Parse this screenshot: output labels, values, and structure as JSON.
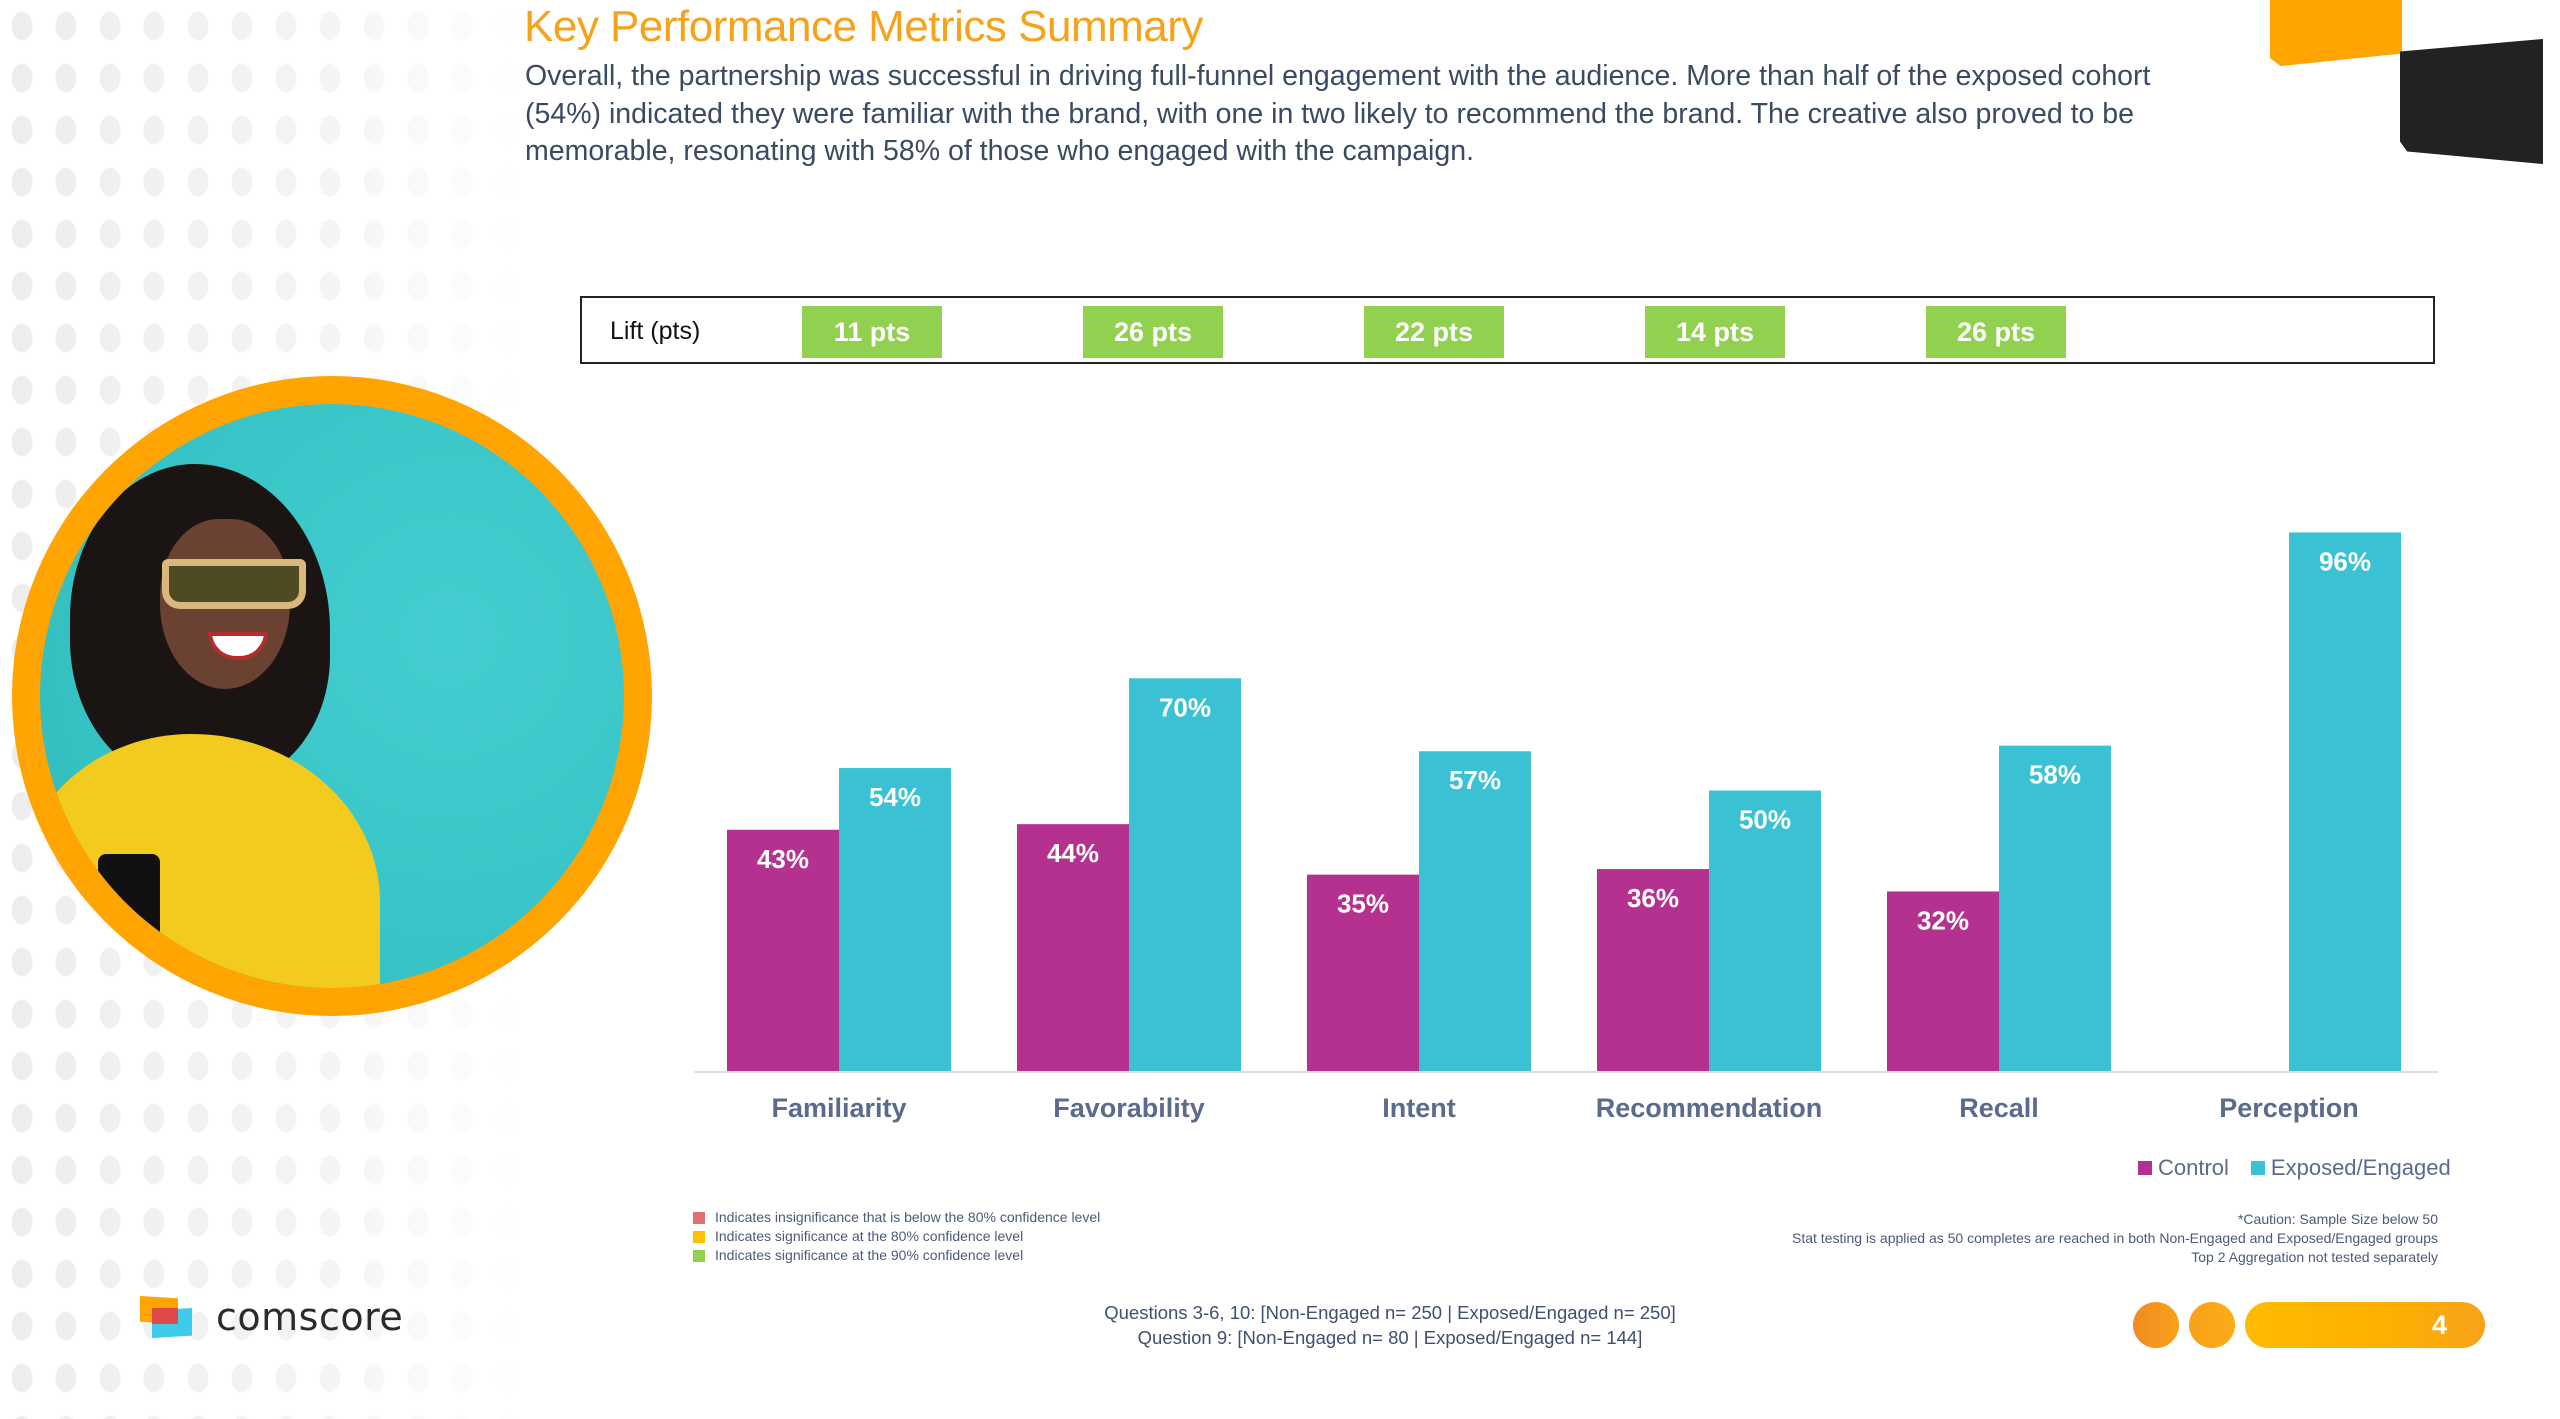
{
  "header": {
    "title": "Key Performance Metrics Summary",
    "summary": "Overall, the partnership was successful in driving full-funnel engagement with the audience. More than half of the exposed cohort (54%) indicated they were familiar with the brand, with one in two likely to recommend the brand. The creative also proved to be memorable, resonating with 58% of those who engaged with the campaign."
  },
  "lift": {
    "label": "Lift (pts)",
    "values": [
      "11 pts",
      "26 pts",
      "22 pts",
      "14 pts",
      "26 pts"
    ],
    "badge_color": "#92d050"
  },
  "chart_data": {
    "type": "bar",
    "title": "",
    "xlabel": "",
    "ylabel": "",
    "ylim": [
      0,
      100
    ],
    "grid": false,
    "legend_position": "bottom-right",
    "categories": [
      "Familiarity",
      "Favorability",
      "Intent",
      "Recommendation",
      "Recall",
      "Perception"
    ],
    "series": [
      {
        "name": "Control",
        "color": "#b5318f",
        "values": [
          43,
          44,
          35,
          36,
          32,
          null
        ]
      },
      {
        "name": "Exposed/Engaged",
        "color": "#3bc1d4",
        "values": [
          54,
          70,
          57,
          50,
          58,
          96
        ]
      }
    ],
    "value_suffix": "%"
  },
  "legend": {
    "items": [
      {
        "label": "Control",
        "color": "#b5318f"
      },
      {
        "label": "Exposed/Engaged",
        "color": "#3bc1d4"
      }
    ]
  },
  "significance_key": [
    {
      "color": "#e07070",
      "label": "Indicates insignificance that is below the 80% confidence level"
    },
    {
      "color": "#ffc000",
      "label": "Indicates significance at the 80% confidence level"
    },
    {
      "color": "#92d050",
      "label": "Indicates significance at the 90% confidence level"
    }
  ],
  "notes": {
    "caution": "*Caution: Sample Size below 50",
    "stat_testing": "Stat testing is applied as 50 completes are reached in both Non-Engaged and Exposed/Engaged groups",
    "aggregation": "Top 2 Aggregation not tested separately"
  },
  "sample_sizes": {
    "line1": "Questions 3-6, 10: [Non-Engaged n= 250 | Exposed/Engaged n= 250]",
    "line2": "Question 9: [Non-Engaged n= 80 | Exposed/Engaged n= 144]"
  },
  "brand": {
    "name": "comscore"
  },
  "page": {
    "number": "4"
  },
  "colors": {
    "accent_orange": "#ffa400",
    "title_orange": "#f7a21b",
    "text_navy": "#3a4a62"
  }
}
